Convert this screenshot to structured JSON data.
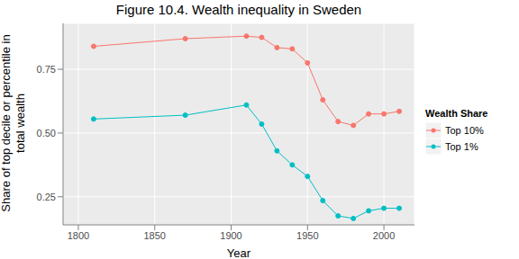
{
  "chart_data": {
    "type": "line",
    "title": "Figure 10.4. Wealth inequality in Sweden",
    "xlabel": "Year",
    "ylabel": "Share of top decile or percentile in total wealth",
    "legend_title": "Wealth Share",
    "legend": "right",
    "grid": true,
    "marker": "circle",
    "x": [
      1810,
      1870,
      1910,
      1920,
      1930,
      1940,
      1950,
      1960,
      1970,
      1980,
      1990,
      2000,
      2010
    ],
    "series": [
      {
        "name": "Top 10%",
        "color": "#F8766D",
        "values": [
          0.84,
          0.87,
          0.88,
          0.875,
          0.835,
          0.83,
          0.775,
          0.63,
          0.545,
          0.53,
          0.575,
          0.575,
          0.585
        ]
      },
      {
        "name": "Top 1%",
        "color": "#00BFC4",
        "values": [
          0.555,
          0.57,
          0.61,
          0.535,
          0.43,
          0.375,
          0.33,
          0.235,
          0.175,
          0.165,
          0.195,
          0.205,
          0.205
        ]
      }
    ],
    "xlim": [
      1790,
      2020
    ],
    "xticks": [
      1800,
      1850,
      1900,
      1950,
      2000
    ],
    "ylim": [
      0.14,
      0.93
    ],
    "yticks": [
      0.25,
      {
        "value": 0.5,
        "label": "0.50"
      },
      0.75
    ]
  }
}
